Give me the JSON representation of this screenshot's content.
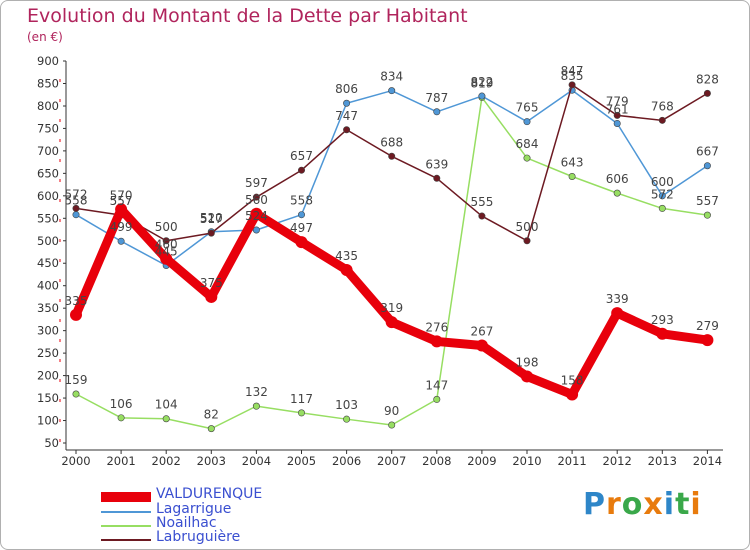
{
  "chart_data": {
    "type": "line",
    "title": "Evolution du Montant de la Dette par Habitant",
    "subtitle": "(en €)",
    "xlabel": "",
    "ylabel": "",
    "x": [
      "2000",
      "2001",
      "2002",
      "2003",
      "2004",
      "2005",
      "2006",
      "2007",
      "2008",
      "2009",
      "2010",
      "2011",
      "2012",
      "2013",
      "2014"
    ],
    "ylim": [
      50,
      900
    ],
    "yticks": [
      50,
      100,
      150,
      200,
      250,
      300,
      350,
      400,
      450,
      500,
      550,
      600,
      650,
      700,
      750,
      800,
      850,
      900
    ],
    "grid": false,
    "legend_position": "bottom-left",
    "series": [
      {
        "name": "VALDURENQUE",
        "color": "#e8000b",
        "values": [
          335,
          570,
          460,
          375,
          560,
          497,
          435,
          319,
          276,
          267,
          198,
          158,
          339,
          293,
          279
        ]
      },
      {
        "name": "Lagarrigue",
        "color": "#4f97d6",
        "values": [
          558,
          499,
          445,
          520,
          524,
          558,
          806,
          834,
          787,
          822,
          765,
          835,
          761,
          600,
          667
        ]
      },
      {
        "name": "Noailhac",
        "color": "#97de62",
        "values": [
          159,
          106,
          104,
          82,
          132,
          117,
          103,
          90,
          147,
          819,
          684,
          643,
          606,
          572,
          557
        ]
      },
      {
        "name": "Labruguière",
        "color": "#6d1a22",
        "values": [
          572,
          557,
          500,
          517,
          597,
          657,
          747,
          688,
          639,
          555,
          500,
          847,
          779,
          768,
          828
        ]
      }
    ]
  },
  "branding": {
    "logo_text": "Proxiti"
  }
}
